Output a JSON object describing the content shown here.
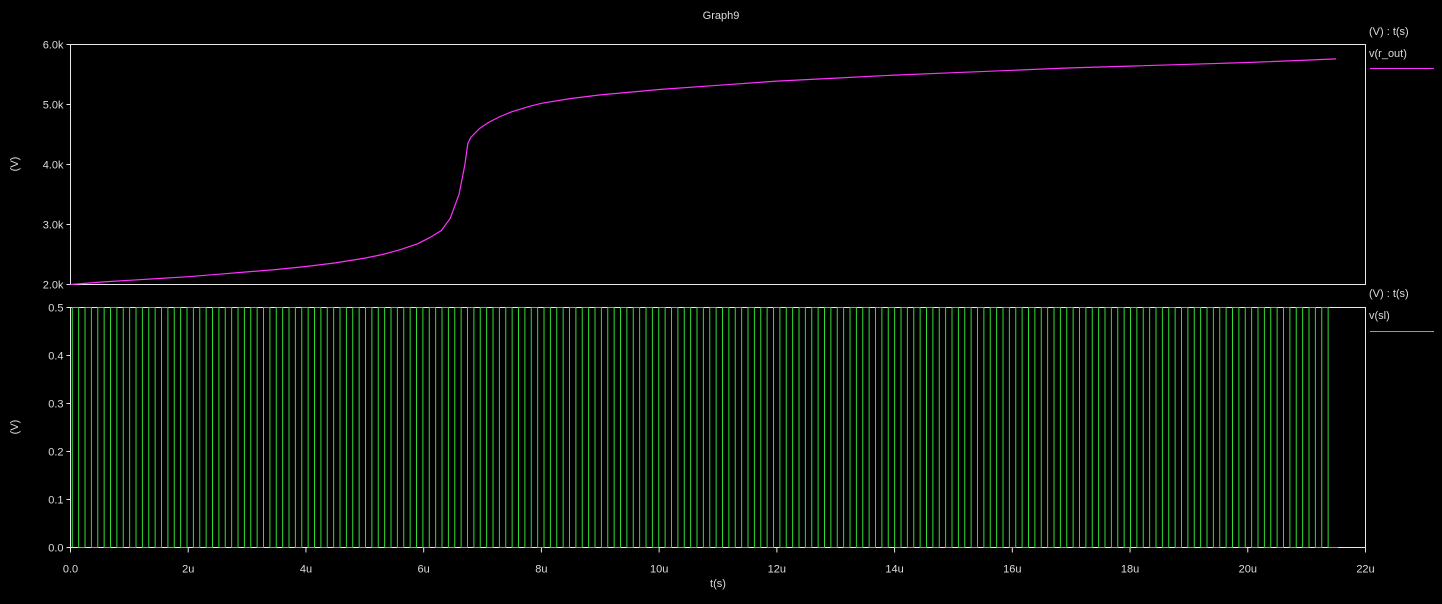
{
  "title": "Graph9",
  "colors": {
    "background": "#000000",
    "frame": "#e8e8e8",
    "text": "#dcdcdc",
    "top_series": "#ff30ff",
    "bottom_series": "#33dd33"
  },
  "chart_data": [
    {
      "type": "line",
      "title": "Graph9",
      "xlabel": "",
      "ylabel": "(V)",
      "legend_header": "(V) : t(s)",
      "legend_placement": "right",
      "xlim": [
        0,
        22
      ],
      "x_unit": "u",
      "ylim": [
        2000,
        6000
      ],
      "ytick_labels": [
        "2.0k",
        "3.0k",
        "4.0k",
        "5.0k",
        "6.0k"
      ],
      "grid": false,
      "series": [
        {
          "name": "v(r_out)",
          "color": "#ff30ff",
          "x": [
            0.0,
            0.5,
            1.0,
            1.5,
            2.0,
            2.5,
            3.0,
            3.5,
            4.0,
            4.5,
            5.0,
            5.3,
            5.6,
            5.9,
            6.1,
            6.3,
            6.45,
            6.6,
            6.7,
            6.75,
            6.8,
            6.95,
            7.1,
            7.3,
            7.5,
            7.8,
            8.0,
            8.5,
            9.0,
            10.0,
            11.0,
            12.0,
            13.0,
            14.0,
            15.0,
            16.0,
            17.0,
            18.0,
            19.0,
            20.0,
            21.0,
            21.5
          ],
          "values": [
            2000,
            2040,
            2070,
            2100,
            2130,
            2170,
            2210,
            2250,
            2300,
            2360,
            2440,
            2500,
            2580,
            2680,
            2780,
            2900,
            3100,
            3500,
            4000,
            4350,
            4450,
            4600,
            4700,
            4800,
            4880,
            4970,
            5020,
            5100,
            5160,
            5250,
            5320,
            5390,
            5440,
            5490,
            5530,
            5570,
            5610,
            5640,
            5670,
            5700,
            5740,
            5760
          ]
        }
      ]
    },
    {
      "type": "line",
      "title": "",
      "xlabel": "t(s)",
      "ylabel": "(V)",
      "legend_header": "(V) : t(s)",
      "legend_placement": "right",
      "xlim": [
        0,
        22
      ],
      "x_unit": "u",
      "xtick_labels": [
        "0.0",
        "2u",
        "4u",
        "6u",
        "8u",
        "10u",
        "12u",
        "14u",
        "16u",
        "18u",
        "20u",
        "22u"
      ],
      "ylim": [
        0.0,
        0.5
      ],
      "ytick_labels": [
        "0.0",
        "0.1",
        "0.2",
        "0.3",
        "0.4",
        "0.5"
      ],
      "grid": false,
      "series": [
        {
          "name": "v(sl)",
          "color": "#33dd33",
          "waveform": "square",
          "low": 0.0,
          "high": 0.5,
          "period": 0.2166,
          "duty_cycle": 0.5,
          "start": 0.03,
          "end": 21.45
        }
      ]
    }
  ]
}
